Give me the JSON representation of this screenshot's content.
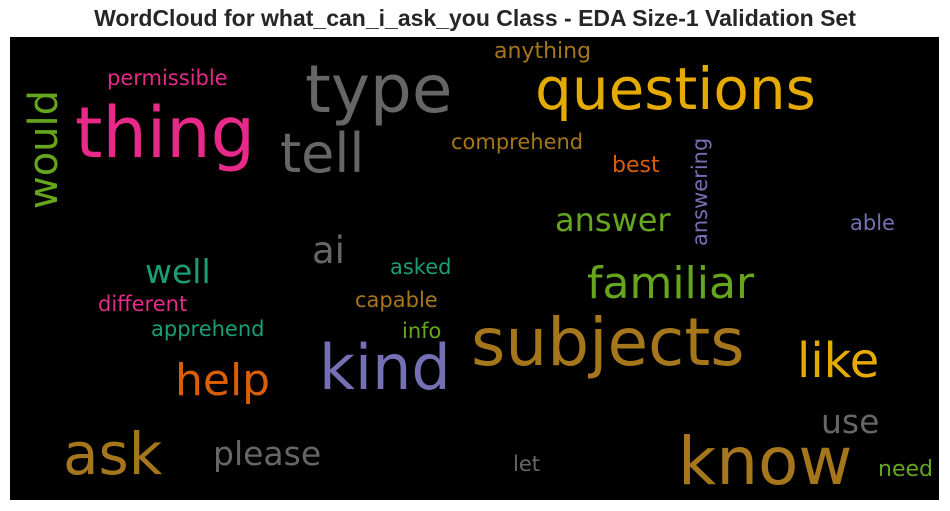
{
  "title": "WordCloud for what_can_i_ask_you Class - EDA Size-1 Validation Set",
  "chart_data": {
    "type": "wordcloud",
    "title": "WordCloud for what_can_i_ask_you Class - EDA Size-1 Validation Set",
    "background": "#000000",
    "words": [
      {
        "text": "thing",
        "color": "#e7298a"
      },
      {
        "text": "type",
        "color": "#666666"
      },
      {
        "text": "questions",
        "color": "#e6ab02"
      },
      {
        "text": "tell",
        "color": "#666666"
      },
      {
        "text": "would",
        "color": "#66a61e"
      },
      {
        "text": "anything",
        "color": "#a6761d"
      },
      {
        "text": "permissible",
        "color": "#e7298a"
      },
      {
        "text": "comprehend",
        "color": "#a6761d"
      },
      {
        "text": "answering",
        "color": "#7570b3"
      },
      {
        "text": "best",
        "color": "#d95f02"
      },
      {
        "text": "answer",
        "color": "#66a61e"
      },
      {
        "text": "able",
        "color": "#7570b3"
      },
      {
        "text": "ai",
        "color": "#666666"
      },
      {
        "text": "well",
        "color": "#1b9e77"
      },
      {
        "text": "asked",
        "color": "#1b9e77"
      },
      {
        "text": "familiar",
        "color": "#66a61e"
      },
      {
        "text": "different",
        "color": "#e7298a"
      },
      {
        "text": "capable",
        "color": "#a6761d"
      },
      {
        "text": "apprehend",
        "color": "#1b9e77"
      },
      {
        "text": "info",
        "color": "#66a61e"
      },
      {
        "text": "subjects",
        "color": "#a6761d"
      },
      {
        "text": "kind",
        "color": "#7570b3"
      },
      {
        "text": "like",
        "color": "#e6ab02"
      },
      {
        "text": "help",
        "color": "#d95f02"
      },
      {
        "text": "use",
        "color": "#666666"
      },
      {
        "text": "ask",
        "color": "#a6761d"
      },
      {
        "text": "please",
        "color": "#666666"
      },
      {
        "text": "know",
        "color": "#a6761d"
      },
      {
        "text": "let",
        "color": "#666666"
      },
      {
        "text": "need",
        "color": "#66a61e"
      }
    ]
  }
}
